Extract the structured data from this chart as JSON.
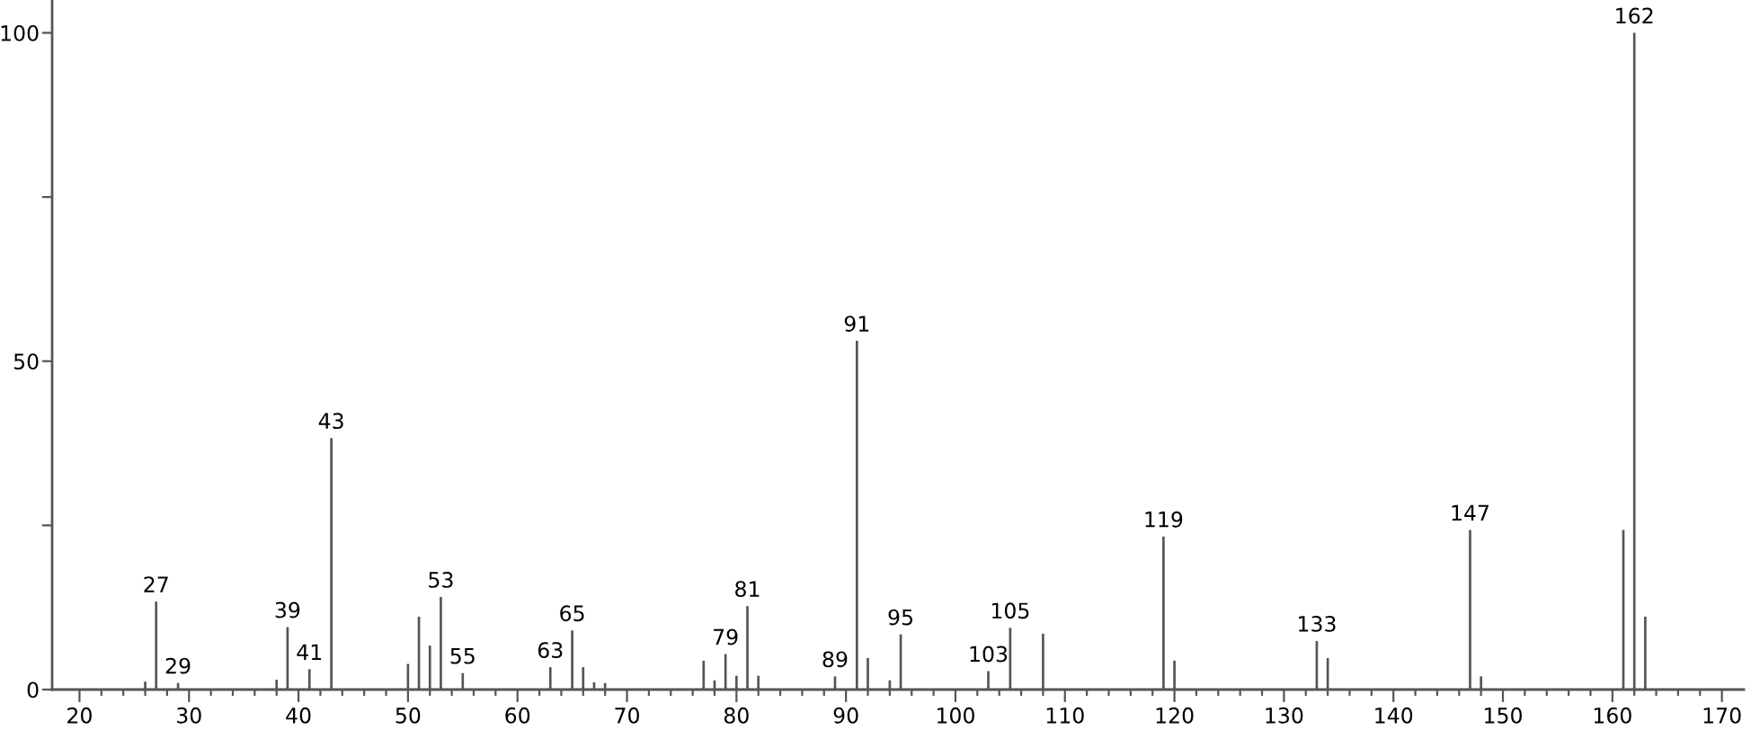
{
  "chart_data": {
    "type": "bar",
    "x": [
      26,
      27,
      29,
      38,
      39,
      41,
      43,
      50,
      51,
      52,
      53,
      55,
      63,
      65,
      66,
      67,
      68,
      77,
      78,
      79,
      80,
      81,
      82,
      89,
      91,
      92,
      94,
      95,
      103,
      105,
      108,
      119,
      120,
      133,
      134,
      147,
      148,
      161,
      162,
      163
    ],
    "values": [
      1.2,
      13.4,
      1.0,
      1.5,
      9.5,
      3.1,
      38.3,
      3.9,
      11.1,
      6.7,
      14.1,
      2.5,
      3.4,
      9.0,
      3.4,
      1.1,
      1.0,
      4.4,
      1.4,
      5.4,
      2.1,
      12.7,
      2.1,
      2.0,
      53.1,
      4.8,
      1.4,
      8.4,
      2.8,
      9.4,
      8.5,
      23.3,
      4.4,
      7.4,
      4.8,
      24.3,
      2.0,
      24.3,
      100,
      11.1
    ],
    "color": "#555555",
    "xlim": [
      17.5,
      172
    ],
    "xticks": [
      20,
      {
        "value": 22,
        "label": null
      },
      {
        "value": 24,
        "label": null
      },
      {
        "value": 26,
        "label": null
      },
      {
        "value": 28,
        "label": null
      },
      30,
      {
        "value": 32,
        "label": null
      },
      {
        "value": 34,
        "label": null
      },
      {
        "value": 36,
        "label": null
      },
      {
        "value": 38,
        "label": null
      },
      40,
      {
        "value": 42,
        "label": null
      },
      {
        "value": 44,
        "label": null
      },
      {
        "value": 46,
        "label": null
      },
      {
        "value": 48,
        "label": null
      },
      50,
      {
        "value": 52,
        "label": null
      },
      {
        "value": 54,
        "label": null
      },
      {
        "value": 56,
        "label": null
      },
      {
        "value": 58,
        "label": null
      },
      60,
      {
        "value": 62,
        "label": null
      },
      {
        "value": 64,
        "label": null
      },
      {
        "value": 66,
        "label": null
      },
      {
        "value": 68,
        "label": null
      },
      70,
      {
        "value": 72,
        "label": null
      },
      {
        "value": 74,
        "label": null
      },
      {
        "value": 76,
        "label": null
      },
      {
        "value": 78,
        "label": null
      },
      80,
      {
        "value": 82,
        "label": null
      },
      {
        "value": 84,
        "label": null
      },
      {
        "value": 86,
        "label": null
      },
      {
        "value": 88,
        "label": null
      },
      90,
      {
        "value": 92,
        "label": null
      },
      {
        "value": 94,
        "label": null
      },
      {
        "value": 96,
        "label": null
      },
      {
        "value": 98,
        "label": null
      },
      100,
      {
        "value": 102,
        "label": null
      },
      {
        "value": 104,
        "label": null
      },
      {
        "value": 106,
        "label": null
      },
      {
        "value": 108,
        "label": null
      },
      110,
      {
        "value": 112,
        "label": null
      },
      {
        "value": 114,
        "label": null
      },
      {
        "value": 116,
        "label": null
      },
      {
        "value": 118,
        "label": null
      },
      120,
      {
        "value": 122,
        "label": null
      },
      {
        "value": 124,
        "label": null
      },
      {
        "value": 126,
        "label": null
      },
      {
        "value": 128,
        "label": null
      },
      130,
      {
        "value": 132,
        "label": null
      },
      {
        "value": 134,
        "label": null
      },
      {
        "value": 136,
        "label": null
      },
      {
        "value": 138,
        "label": null
      },
      140,
      {
        "value": 142,
        "label": null
      },
      {
        "value": 144,
        "label": null
      },
      {
        "value": 146,
        "label": null
      },
      {
        "value": 148,
        "label": null
      },
      150,
      {
        "value": 152,
        "label": null
      },
      {
        "value": 154,
        "label": null
      },
      {
        "value": 156,
        "label": null
      },
      {
        "value": 158,
        "label": null
      },
      160,
      {
        "value": 162,
        "label": null
      },
      {
        "value": 164,
        "label": null
      },
      {
        "value": 166,
        "label": null
      },
      {
        "value": 168,
        "label": null
      },
      170
    ],
    "ylim": [
      0,
      105
    ],
    "yticks": [
      0,
      {
        "value": 25,
        "label": null
      },
      50,
      {
        "value": 75,
        "label": null
      },
      100
    ],
    "annotations": [
      {
        "text": "27",
        "x": 27,
        "y": 13.4
      },
      {
        "text": "29",
        "x": 29,
        "y": 1.0
      },
      {
        "text": "39",
        "x": 39,
        "y": 9.5
      },
      {
        "text": "41",
        "x": 41,
        "y": 3.1
      },
      {
        "text": "43",
        "x": 43,
        "y": 38.3
      },
      {
        "text": "53",
        "x": 53,
        "y": 14.1
      },
      {
        "text": "55",
        "x": 55,
        "y": 2.5
      },
      {
        "text": "63",
        "x": 63,
        "y": 3.4
      },
      {
        "text": "65",
        "x": 65,
        "y": 9.0
      },
      {
        "text": "79",
        "x": 79,
        "y": 5.4
      },
      {
        "text": "81",
        "x": 81,
        "y": 12.7
      },
      {
        "text": "89",
        "x": 89,
        "y": 2.0
      },
      {
        "text": "91",
        "x": 91,
        "y": 53.1
      },
      {
        "text": "95",
        "x": 95,
        "y": 8.4
      },
      {
        "text": "103",
        "x": 103,
        "y": 2.8
      },
      {
        "text": "105",
        "x": 105,
        "y": 9.4
      },
      {
        "text": "119",
        "x": 119,
        "y": 23.3
      },
      {
        "text": "133",
        "x": 133,
        "y": 7.4
      },
      {
        "text": "147",
        "x": 147,
        "y": 24.3
      },
      {
        "text": "162",
        "x": 162,
        "y": 100
      }
    ]
  }
}
